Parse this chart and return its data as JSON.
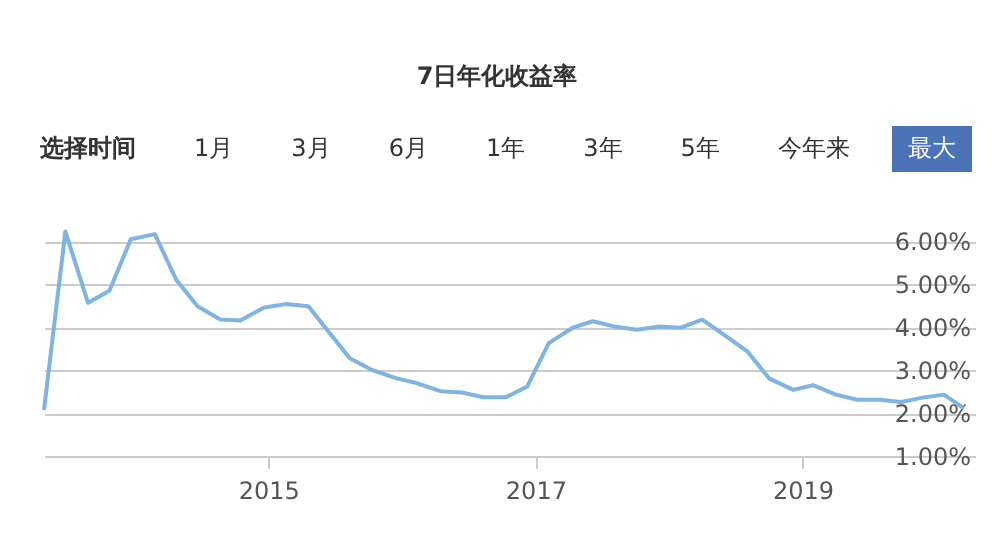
{
  "chart_data": {
    "type": "line",
    "title": "7日年化收益率",
    "annotations": [
      "选择时间",
      "1月",
      "3月",
      "6月",
      "1年",
      "3年",
      "5年",
      "今年来",
      "最大"
    ],
    "x": [
      2013.32,
      2013.48,
      2013.65,
      2013.81,
      2013.97,
      2014.15,
      2014.31,
      2014.47,
      2014.64,
      2014.79,
      2014.97,
      2015.13,
      2015.3,
      2015.45,
      2015.61,
      2015.78,
      2015.96,
      2016.11,
      2016.29,
      2016.45,
      2016.61,
      2016.78,
      2016.94,
      2017.1,
      2017.28,
      2017.43,
      2017.59,
      2017.76,
      2017.93,
      2018.09,
      2018.25,
      2018.43,
      2018.59,
      2018.75,
      2018.93,
      2019.08,
      2019.25,
      2019.41,
      2019.58,
      2019.74,
      2019.9,
      2020.06,
      2020.21
    ],
    "series": [
      {
        "color": "#7eb3e3",
        "values": [
          2.07,
          6.23,
          4.57,
          4.85,
          6.05,
          6.17,
          5.11,
          4.49,
          4.18,
          4.16,
          4.46,
          4.54,
          4.49,
          3.9,
          3.28,
          3.0,
          2.81,
          2.7,
          2.51,
          2.48,
          2.37,
          2.37,
          2.62,
          3.63,
          3.99,
          4.14,
          4.02,
          3.94,
          4.02,
          3.99,
          4.18,
          3.79,
          3.43,
          2.81,
          2.54,
          2.65,
          2.43,
          2.31,
          2.31,
          2.26,
          2.36,
          2.43,
          2.11
        ]
      }
    ],
    "xlim": [
      2013.32,
      2020.3
    ],
    "xticks": [
      2015,
      2017,
      2019
    ],
    "ylim": [
      1,
      6.5
    ],
    "yticks": [
      {
        "value": 1,
        "label": "1.00%"
      },
      {
        "value": 2,
        "label": "2.00%"
      },
      {
        "value": 3,
        "label": "3.00%"
      },
      {
        "value": 4,
        "label": "4.00%"
      },
      {
        "value": 5,
        "label": "5.00%"
      },
      {
        "value": 6,
        "label": "6.00%"
      }
    ],
    "grid": "y",
    "marker": "none",
    "line_style": "solid"
  }
}
